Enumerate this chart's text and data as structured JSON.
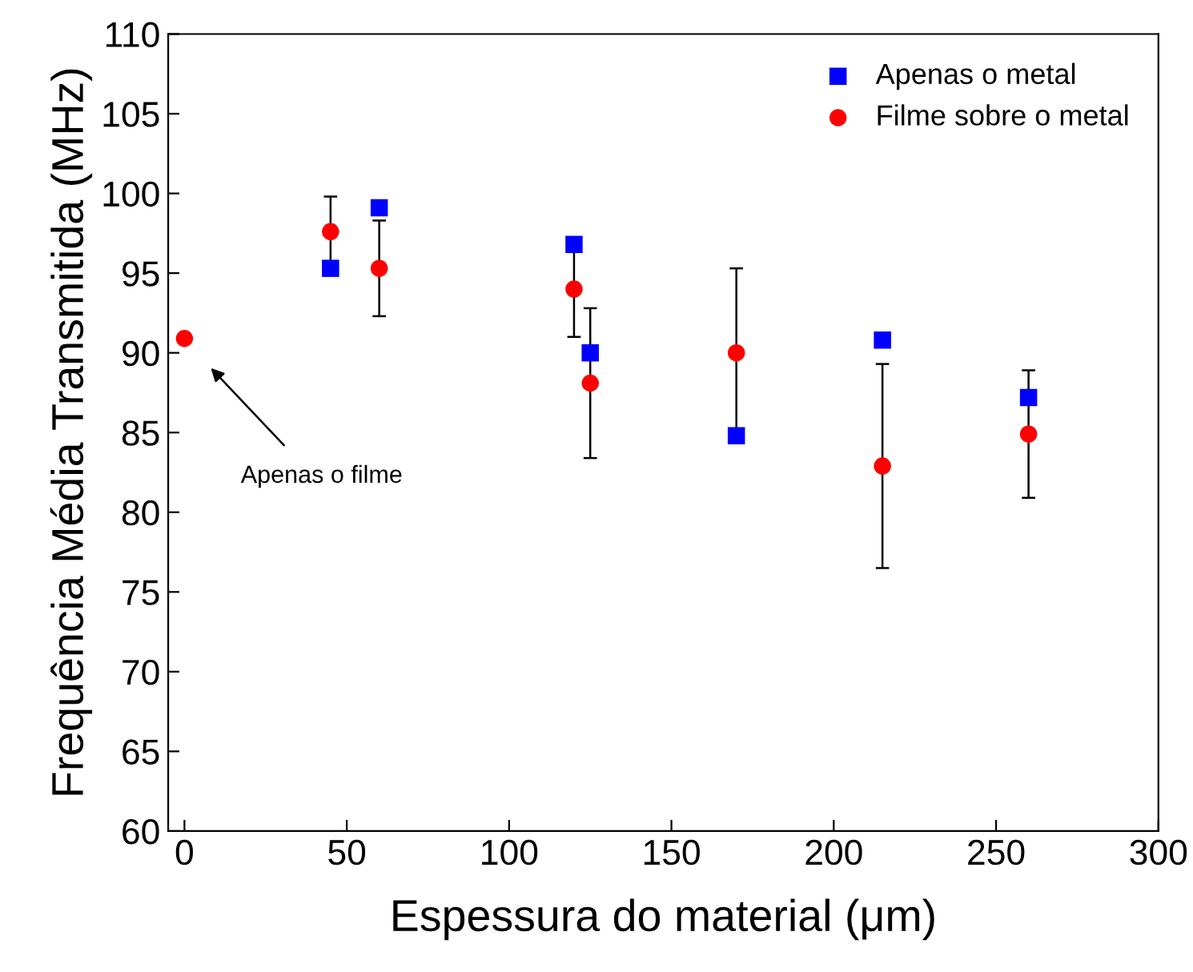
{
  "chart_data": {
    "type": "scatter",
    "xlabel": "Espessura do material (μm)",
    "ylabel": "Frequência Média Transmitida (MHz)",
    "xlim": [
      -5,
      300
    ],
    "xticks": [
      0,
      50,
      100,
      150,
      200,
      250,
      300
    ],
    "ylim": [
      60,
      110
    ],
    "yticks": [
      60,
      65,
      70,
      75,
      80,
      85,
      90,
      95,
      100,
      105,
      110
    ],
    "grid": false,
    "legend": "top right",
    "series": [
      {
        "name": "Apenas o metal",
        "color": "#0000ff",
        "marker": "square",
        "x": [
          45,
          60,
          120,
          125,
          170,
          215,
          260
        ],
        "values": [
          95.3,
          99.1,
          96.8,
          90.0,
          84.8,
          90.8,
          87.2
        ]
      },
      {
        "name": "Filme sobre o metal",
        "color": "#ff0000",
        "marker": "circle",
        "x": [
          0,
          45,
          60,
          120,
          125,
          170,
          215,
          260
        ],
        "values": [
          90.9,
          97.6,
          95.3,
          94.0,
          88.1,
          90.0,
          82.9,
          84.9
        ],
        "errors": [
          null,
          2.2,
          3.0,
          3.0,
          4.7,
          5.3,
          6.4,
          4.0
        ]
      }
    ],
    "annotations": [
      "Apenas o filme"
    ]
  }
}
